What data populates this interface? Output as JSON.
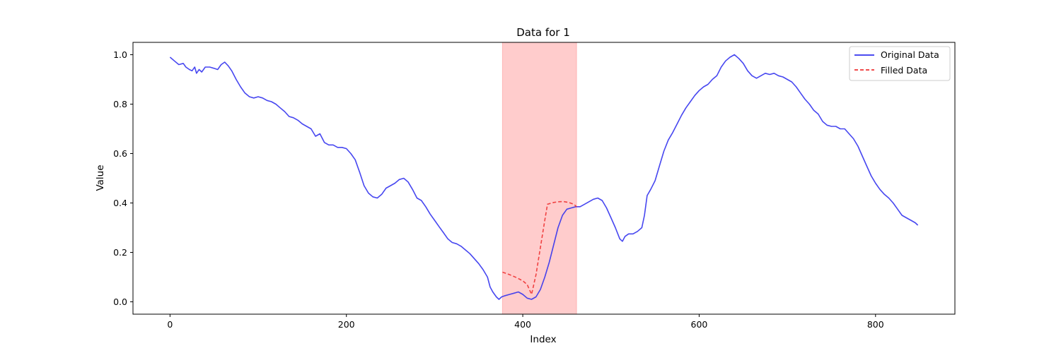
{
  "chart_data": {
    "type": "line",
    "title": "Data for 1",
    "xlabel": "Index",
    "ylabel": "Value",
    "xlim": [
      -42,
      890
    ],
    "ylim": [
      -0.05,
      1.05
    ],
    "xticks": [
      0,
      200,
      400,
      600,
      800
    ],
    "xtick_labels": [
      "0",
      "200",
      "400",
      "600",
      "800"
    ],
    "yticks": [
      0.0,
      0.2,
      0.4,
      0.6,
      0.8,
      1.0
    ],
    "ytick_labels": [
      "0.0",
      "0.2",
      "0.4",
      "0.6",
      "0.8",
      "1.0"
    ],
    "grid": false,
    "legend_position": "top-right",
    "highlight_span": {
      "x0": 377,
      "x1": 461,
      "color": "#ff9999"
    },
    "series": [
      {
        "name": "Original Data",
        "color": "#3333ee",
        "style": "solid",
        "points": [
          [
            0,
            0.99
          ],
          [
            5,
            0.975
          ],
          [
            10,
            0.96
          ],
          [
            15,
            0.965
          ],
          [
            18,
            0.95
          ],
          [
            22,
            0.94
          ],
          [
            25,
            0.935
          ],
          [
            28,
            0.95
          ],
          [
            30,
            0.925
          ],
          [
            33,
            0.94
          ],
          [
            36,
            0.93
          ],
          [
            40,
            0.95
          ],
          [
            45,
            0.95
          ],
          [
            50,
            0.945
          ],
          [
            54,
            0.94
          ],
          [
            58,
            0.96
          ],
          [
            62,
            0.97
          ],
          [
            66,
            0.955
          ],
          [
            70,
            0.935
          ],
          [
            75,
            0.9
          ],
          [
            80,
            0.87
          ],
          [
            85,
            0.845
          ],
          [
            90,
            0.83
          ],
          [
            95,
            0.825
          ],
          [
            100,
            0.83
          ],
          [
            105,
            0.825
          ],
          [
            110,
            0.815
          ],
          [
            115,
            0.81
          ],
          [
            120,
            0.8
          ],
          [
            125,
            0.785
          ],
          [
            130,
            0.77
          ],
          [
            135,
            0.75
          ],
          [
            140,
            0.745
          ],
          [
            145,
            0.735
          ],
          [
            150,
            0.72
          ],
          [
            155,
            0.71
          ],
          [
            160,
            0.7
          ],
          [
            165,
            0.67
          ],
          [
            170,
            0.68
          ],
          [
            175,
            0.645
          ],
          [
            180,
            0.635
          ],
          [
            185,
            0.635
          ],
          [
            190,
            0.625
          ],
          [
            195,
            0.625
          ],
          [
            200,
            0.62
          ],
          [
            205,
            0.6
          ],
          [
            210,
            0.575
          ],
          [
            215,
            0.525
          ],
          [
            220,
            0.47
          ],
          [
            225,
            0.44
          ],
          [
            230,
            0.425
          ],
          [
            235,
            0.42
          ],
          [
            240,
            0.435
          ],
          [
            245,
            0.46
          ],
          [
            250,
            0.47
          ],
          [
            255,
            0.48
          ],
          [
            260,
            0.495
          ],
          [
            265,
            0.5
          ],
          [
            270,
            0.485
          ],
          [
            275,
            0.455
          ],
          [
            280,
            0.42
          ],
          [
            285,
            0.41
          ],
          [
            290,
            0.385
          ],
          [
            295,
            0.355
          ],
          [
            300,
            0.33
          ],
          [
            305,
            0.305
          ],
          [
            310,
            0.28
          ],
          [
            315,
            0.255
          ],
          [
            320,
            0.24
          ],
          [
            325,
            0.235
          ],
          [
            330,
            0.225
          ],
          [
            335,
            0.21
          ],
          [
            340,
            0.195
          ],
          [
            345,
            0.175
          ],
          [
            350,
            0.155
          ],
          [
            355,
            0.13
          ],
          [
            360,
            0.1
          ],
          [
            363,
            0.06
          ],
          [
            366,
            0.04
          ],
          [
            370,
            0.02
          ],
          [
            373,
            0.01
          ],
          [
            376,
            0.02
          ],
          [
            380,
            0.025
          ],
          [
            385,
            0.03
          ],
          [
            390,
            0.035
          ],
          [
            395,
            0.04
          ],
          [
            400,
            0.03
          ],
          [
            405,
            0.015
          ],
          [
            410,
            0.01
          ],
          [
            415,
            0.02
          ],
          [
            420,
            0.05
          ],
          [
            425,
            0.1
          ],
          [
            430,
            0.16
          ],
          [
            435,
            0.23
          ],
          [
            440,
            0.3
          ],
          [
            445,
            0.35
          ],
          [
            450,
            0.375
          ],
          [
            455,
            0.38
          ],
          [
            460,
            0.385
          ],
          [
            465,
            0.385
          ],
          [
            470,
            0.395
          ],
          [
            475,
            0.405
          ],
          [
            480,
            0.415
          ],
          [
            485,
            0.42
          ],
          [
            490,
            0.41
          ],
          [
            495,
            0.38
          ],
          [
            500,
            0.34
          ],
          [
            505,
            0.3
          ],
          [
            510,
            0.255
          ],
          [
            513,
            0.245
          ],
          [
            516,
            0.265
          ],
          [
            520,
            0.275
          ],
          [
            525,
            0.275
          ],
          [
            530,
            0.285
          ],
          [
            535,
            0.3
          ],
          [
            538,
            0.35
          ],
          [
            541,
            0.43
          ],
          [
            545,
            0.455
          ],
          [
            550,
            0.49
          ],
          [
            555,
            0.55
          ],
          [
            560,
            0.61
          ],
          [
            565,
            0.655
          ],
          [
            570,
            0.685
          ],
          [
            575,
            0.72
          ],
          [
            580,
            0.755
          ],
          [
            585,
            0.785
          ],
          [
            590,
            0.81
          ],
          [
            595,
            0.835
          ],
          [
            600,
            0.855
          ],
          [
            605,
            0.87
          ],
          [
            610,
            0.88
          ],
          [
            615,
            0.9
          ],
          [
            620,
            0.915
          ],
          [
            625,
            0.95
          ],
          [
            630,
            0.975
          ],
          [
            635,
            0.99
          ],
          [
            640,
            1.0
          ],
          [
            645,
            0.985
          ],
          [
            650,
            0.965
          ],
          [
            655,
            0.935
          ],
          [
            660,
            0.915
          ],
          [
            665,
            0.905
          ],
          [
            670,
            0.915
          ],
          [
            675,
            0.925
          ],
          [
            680,
            0.92
          ],
          [
            685,
            0.925
          ],
          [
            690,
            0.915
          ],
          [
            695,
            0.91
          ],
          [
            700,
            0.9
          ],
          [
            705,
            0.89
          ],
          [
            710,
            0.87
          ],
          [
            715,
            0.845
          ],
          [
            720,
            0.82
          ],
          [
            725,
            0.8
          ],
          [
            730,
            0.775
          ],
          [
            735,
            0.76
          ],
          [
            740,
            0.73
          ],
          [
            745,
            0.715
          ],
          [
            750,
            0.71
          ],
          [
            755,
            0.71
          ],
          [
            760,
            0.7
          ],
          [
            765,
            0.7
          ],
          [
            770,
            0.68
          ],
          [
            775,
            0.66
          ],
          [
            780,
            0.63
          ],
          [
            785,
            0.59
          ],
          [
            790,
            0.55
          ],
          [
            795,
            0.51
          ],
          [
            800,
            0.48
          ],
          [
            805,
            0.455
          ],
          [
            810,
            0.435
          ],
          [
            815,
            0.42
          ],
          [
            820,
            0.4
          ],
          [
            825,
            0.375
          ],
          [
            830,
            0.35
          ],
          [
            835,
            0.34
          ],
          [
            840,
            0.33
          ],
          [
            845,
            0.32
          ],
          [
            848,
            0.31
          ]
        ]
      },
      {
        "name": "Filled Data",
        "color": "#ee3333",
        "style": "dashed",
        "points": [
          [
            377,
            0.12
          ],
          [
            385,
            0.11
          ],
          [
            393,
            0.098
          ],
          [
            400,
            0.085
          ],
          [
            405,
            0.07
          ],
          [
            410,
            0.03
          ],
          [
            415,
            0.11
          ],
          [
            420,
            0.22
          ],
          [
            425,
            0.33
          ],
          [
            428,
            0.395
          ],
          [
            435,
            0.402
          ],
          [
            440,
            0.405
          ],
          [
            446,
            0.406
          ],
          [
            452,
            0.402
          ],
          [
            458,
            0.395
          ],
          [
            461,
            0.385
          ]
        ]
      }
    ]
  }
}
